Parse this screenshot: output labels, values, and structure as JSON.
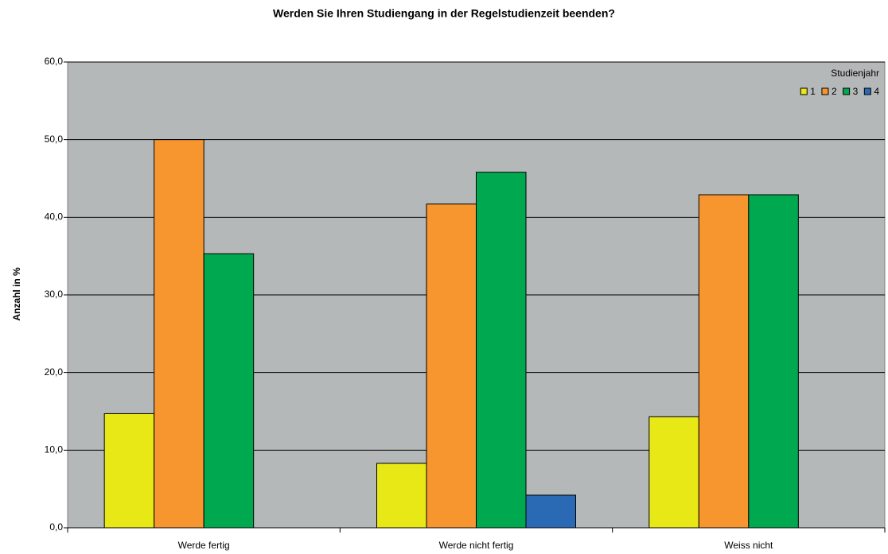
{
  "chart_data": {
    "type": "bar",
    "title": "Werden Sie Ihren Studiengang in der Regelstudienzeit beenden?",
    "y_label": "Anzahl in %",
    "categories": [
      "Werde fertig",
      "Werde nicht fertig",
      "Weiss nicht"
    ],
    "legend_title": "Studienjahr",
    "legend_position": "upper right",
    "series": [
      {
        "name": "1",
        "color": "#e8e817",
        "values": [
          14.7,
          8.3,
          14.3
        ]
      },
      {
        "name": "2",
        "color": "#f7962f",
        "values": [
          50.0,
          41.7,
          42.9
        ]
      },
      {
        "name": "3",
        "color": "#00a84f",
        "values": [
          35.3,
          45.8,
          42.9
        ]
      },
      {
        "name": "4",
        "color": "#2a6ab5",
        "values": [
          0,
          4.2,
          0
        ]
      }
    ],
    "ylim": [
      0,
      60
    ],
    "yticks": [
      {
        "value": 0,
        "label": "0,0"
      },
      {
        "value": 10,
        "label": "10,0"
      },
      {
        "value": 20,
        "label": "20,0"
      },
      {
        "value": 30,
        "label": "30,0"
      },
      {
        "value": 40,
        "label": "40,0"
      },
      {
        "value": 50,
        "label": "50,0"
      },
      {
        "value": 60,
        "label": "60,0"
      }
    ],
    "grid": true
  }
}
